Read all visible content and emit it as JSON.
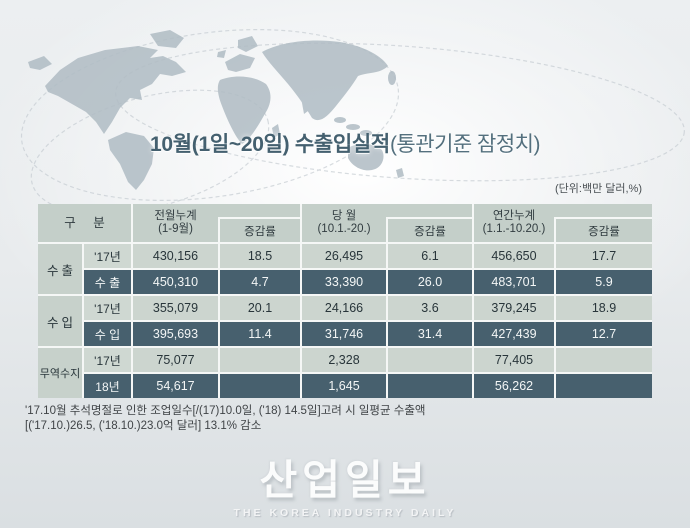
{
  "title": {
    "main": "10월(1일~20일) 수출입실적",
    "sub": "(통관기준 잠정치)"
  },
  "unit_note": "(단위:백만 달러,%)",
  "table": {
    "category_header": "구 분",
    "column_groups": [
      {
        "main": "전월누계",
        "range": "(1-9월)",
        "rate": "증감률"
      },
      {
        "main": "당 월",
        "range": "(10.1.-20.)",
        "rate": "증감률"
      },
      {
        "main": "연간누계",
        "range": "(1.1.-10.20.)",
        "rate": "증감률"
      }
    ],
    "row_groups": [
      {
        "name": "수출",
        "rows": [
          {
            "label": "'17년",
            "highlight": false,
            "values": [
              "430,156",
              "18.5",
              "26,495",
              "6.1",
              "456,650",
              "17.7"
            ]
          },
          {
            "label": "수 출",
            "highlight": true,
            "values": [
              "450,310",
              "4.7",
              "33,390",
              "26.0",
              "483,701",
              "5.9"
            ]
          }
        ]
      },
      {
        "name": "수입",
        "rows": [
          {
            "label": "'17년",
            "highlight": false,
            "values": [
              "355,079",
              "20.1",
              "24,166",
              "3.6",
              "379,245",
              "18.9"
            ]
          },
          {
            "label": "수 입",
            "highlight": true,
            "values": [
              "395,693",
              "11.4",
              "31,746",
              "31.4",
              "427,439",
              "12.7"
            ]
          }
        ]
      },
      {
        "name": "무역수지",
        "rows": [
          {
            "label": "'17년",
            "highlight": false,
            "values": [
              "75,077",
              "",
              "2,328",
              "",
              "77,405",
              ""
            ]
          },
          {
            "label": "18년",
            "highlight": true,
            "values": [
              "54,617",
              "",
              "1,645",
              "",
              "56,262",
              ""
            ]
          }
        ]
      }
    ]
  },
  "footnote": {
    "line1": "'17.10월 추석명절로 인한 조업일수[/(17)10.0일, ('18) 14.5일]고려 시 일평균 수출액",
    "line2": "[('17.10.)26.5, ('18.10.)23.0억 달러] 13.1% 감소"
  },
  "watermark": {
    "korean": "산업일보",
    "english": "THE KOREA INDUSTRY DAILY"
  },
  "colors": {
    "highlight_row": "#47606e",
    "light_cell": "#ccd5cf",
    "header_cell": "#c4cfc9",
    "gridline": "#f5f7f6",
    "title_text": "#44606f",
    "map_silhouette": "#b0bcc4"
  }
}
